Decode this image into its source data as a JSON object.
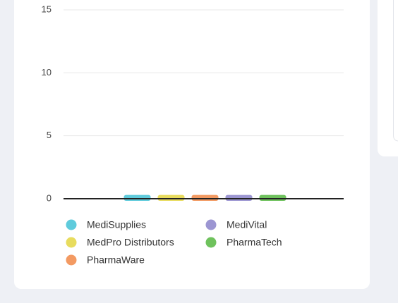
{
  "chart_data": {
    "type": "bar",
    "categories": [
      null
    ],
    "series": [
      {
        "name": "MediSupplies",
        "color": "#5fcbdc",
        "values": [
          0.3
        ]
      },
      {
        "name": "MedPro Distributors",
        "color": "#e8dc5e",
        "values": [
          0.3
        ]
      },
      {
        "name": "PharmaWare",
        "color": "#f39a62",
        "values": [
          0.3
        ]
      },
      {
        "name": "MediVital",
        "color": "#9c96d2",
        "values": [
          0.3
        ]
      },
      {
        "name": "PharmaTech",
        "color": "#6fc25d",
        "values": [
          0.3
        ]
      }
    ],
    "ylim": [
      0,
      15
    ],
    "yticks": [
      0,
      5,
      10,
      15
    ],
    "grid": true,
    "legend": "bottom"
  }
}
